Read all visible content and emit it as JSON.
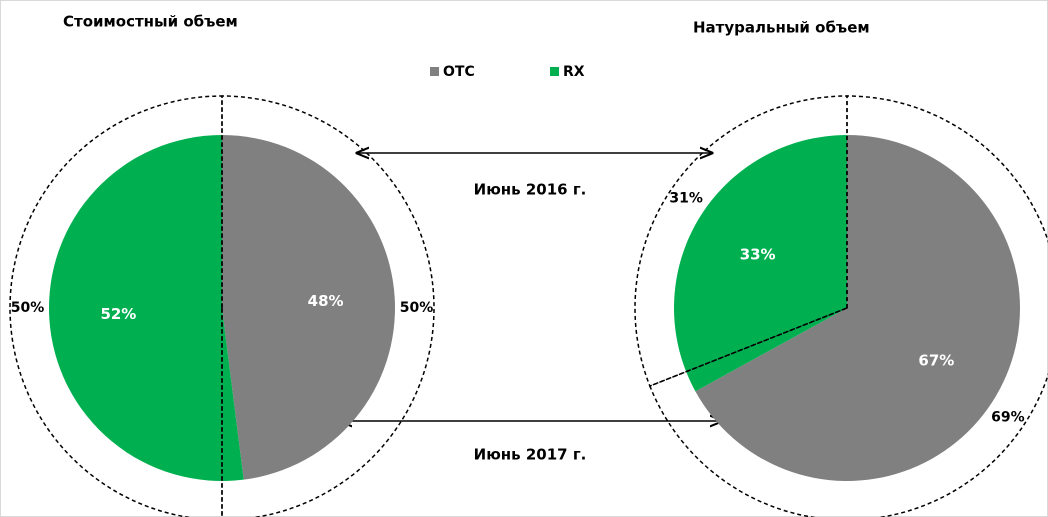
{
  "chart_data": {
    "type": "pie",
    "categories": [
      "OTC",
      "RX"
    ],
    "colors": [
      "#808080",
      "#00b050"
    ],
    "series_names": [
      "Июнь 2016 г.",
      "Июнь 2017 г."
    ],
    "charts": [
      {
        "title": "Стоимостный объем",
        "series": [
          {
            "values": [
              50,
              50
            ],
            "value_labels": [
              "50%",
              "50%"
            ]
          },
          {
            "values": [
              48,
              52
            ],
            "value_labels": [
              "48%",
              "52%"
            ]
          }
        ]
      },
      {
        "title": "Натуральный объем",
        "series": [
          {
            "values": [
              69,
              31
            ],
            "value_labels": [
              "69%",
              "31%"
            ]
          },
          {
            "values": [
              67,
              33
            ],
            "value_labels": [
              "67%",
              "33%"
            ]
          }
        ]
      }
    ]
  }
}
